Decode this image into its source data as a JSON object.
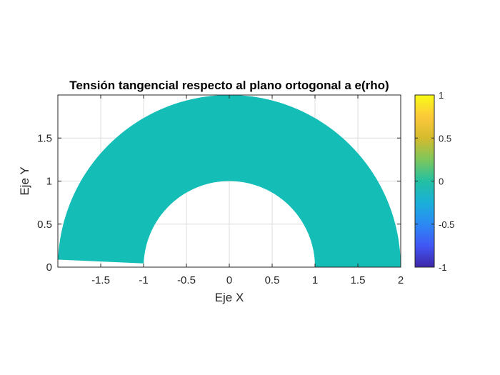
{
  "chart_data": {
    "type": "heatmap",
    "title": "Tensión tangencial respecto al plano ortogonal a e(rho)",
    "xlabel": "Eje X",
    "ylabel": "Eje Y",
    "xlim": [
      -2,
      2
    ],
    "ylim": [
      0,
      2
    ],
    "xticks": [
      "-1.5",
      "-1",
      "-0.5",
      "0",
      "0.5",
      "1",
      "1.5",
      "2"
    ],
    "xtick_values": [
      -1.5,
      -1,
      -0.5,
      0,
      0.5,
      1,
      1.5,
      2
    ],
    "yticks": [
      "0",
      "0.5",
      "1",
      "1.5"
    ],
    "ytick_values": [
      0,
      0.5,
      1,
      1.5
    ],
    "grid": true,
    "region": {
      "shape": "annular sector",
      "inner_radius": 1,
      "outer_radius": 2,
      "theta_start_deg": 0,
      "theta_end_deg": 177.5,
      "value": 0,
      "color": "#14bdb6"
    },
    "colorbar": {
      "limits": [
        -1,
        1
      ],
      "ticks": [
        "1",
        "0.5",
        "0",
        "-0.5",
        "-1"
      ],
      "tick_values": [
        1,
        0.5,
        0,
        -0.5,
        -1
      ],
      "colormap": "parula",
      "colors": [
        "#3e26a8",
        "#4157f5",
        "#2c89f4",
        "#1ab0d9",
        "#23c0a2",
        "#7dc65b",
        "#d5bb2e",
        "#fcc93a",
        "#f9fb15"
      ]
    }
  }
}
